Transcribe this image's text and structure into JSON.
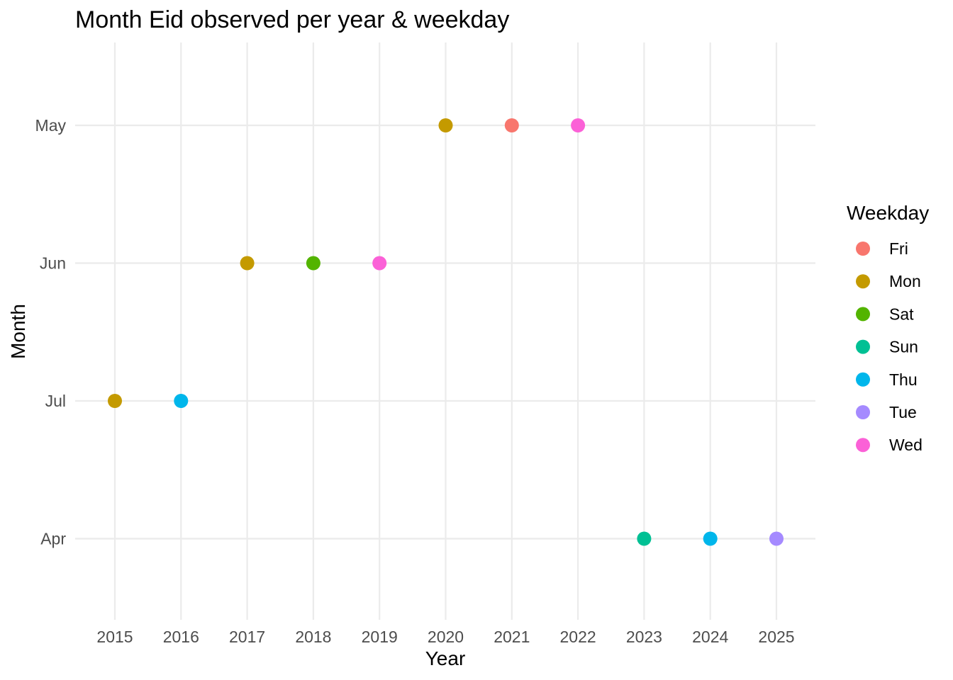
{
  "chart_data": {
    "type": "scatter",
    "title": "Month Eid observed per year & weekday",
    "xlabel": "Year",
    "ylabel": "Month",
    "x_ticks": [
      "2015",
      "2016",
      "2017",
      "2018",
      "2019",
      "2020",
      "2021",
      "2022",
      "2023",
      "2024",
      "2025"
    ],
    "y_categories": [
      "May",
      "Jun",
      "Jul",
      "Apr"
    ],
    "grid": true,
    "legend": {
      "title": "Weekday",
      "placement": "right",
      "entries": [
        {
          "label": "Fri",
          "color": "#F8766D"
        },
        {
          "label": "Mon",
          "color": "#C49A00"
        },
        {
          "label": "Sat",
          "color": "#53B400"
        },
        {
          "label": "Sun",
          "color": "#00C094"
        },
        {
          "label": "Thu",
          "color": "#00B6EB"
        },
        {
          "label": "Tue",
          "color": "#A58AFF"
        },
        {
          "label": "Wed",
          "color": "#FB61D7"
        }
      ]
    },
    "points": [
      {
        "x": 2015,
        "y": "Jul",
        "weekday": "Mon"
      },
      {
        "x": 2016,
        "y": "Jul",
        "weekday": "Thu"
      },
      {
        "x": 2017,
        "y": "Jun",
        "weekday": "Mon"
      },
      {
        "x": 2018,
        "y": "Jun",
        "weekday": "Sat"
      },
      {
        "x": 2019,
        "y": "Jun",
        "weekday": "Wed"
      },
      {
        "x": 2020,
        "y": "May",
        "weekday": "Mon"
      },
      {
        "x": 2021,
        "y": "May",
        "weekday": "Fri"
      },
      {
        "x": 2022,
        "y": "May",
        "weekday": "Wed"
      },
      {
        "x": 2023,
        "y": "Apr",
        "weekday": "Sun"
      },
      {
        "x": 2024,
        "y": "Apr",
        "weekday": "Thu"
      },
      {
        "x": 2025,
        "y": "Apr",
        "weekday": "Tue"
      }
    ]
  }
}
